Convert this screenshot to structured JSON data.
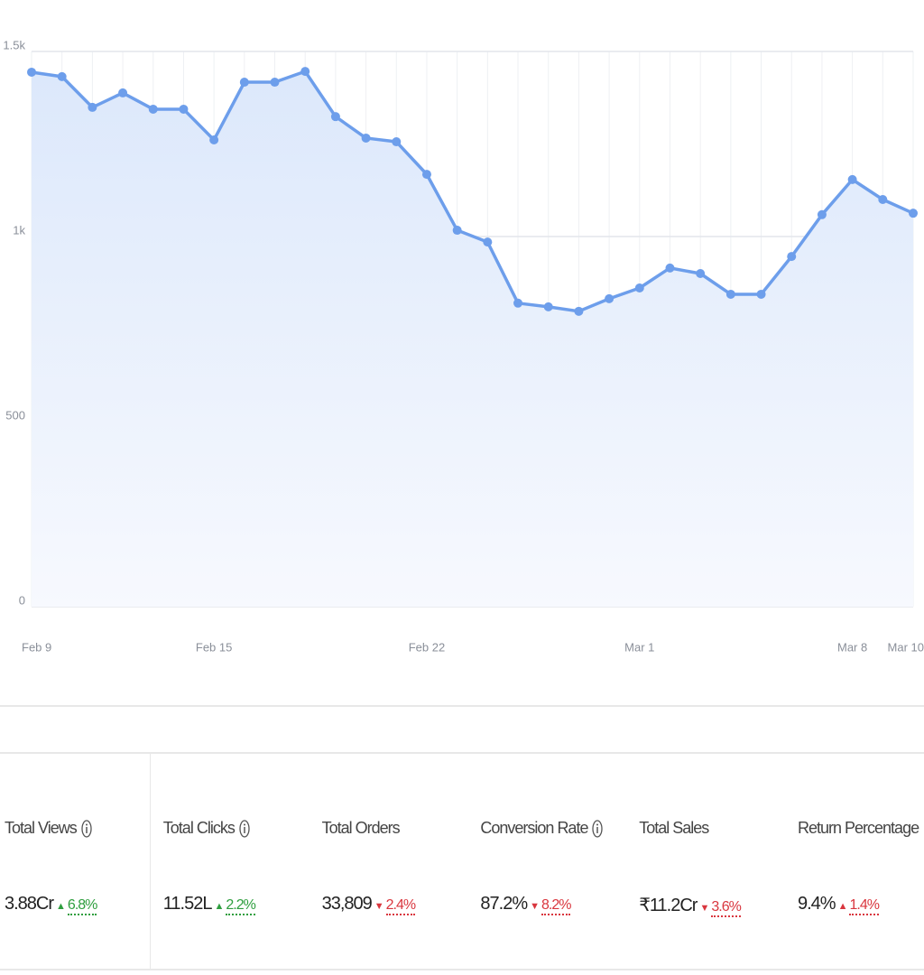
{
  "chart_data": {
    "type": "line",
    "categories": [
      "Feb 9",
      null,
      null,
      null,
      null,
      null,
      "Feb 15",
      null,
      null,
      null,
      null,
      null,
      null,
      "Feb 22",
      null,
      null,
      null,
      null,
      null,
      null,
      "Mar 1",
      null,
      null,
      null,
      null,
      null,
      null,
      "Mar 8",
      null,
      "Mar 10"
    ],
    "values": [
      1444,
      1432,
      1349,
      1388,
      1344,
      1344,
      1261,
      1417,
      1417,
      1446,
      1324,
      1266,
      1256,
      1168,
      1017,
      985,
      820,
      810,
      798,
      832,
      861,
      915,
      900,
      844,
      844,
      946,
      1059,
      1154,
      1100,
      1063
    ],
    "color": "#6d9eeb",
    "ylim": [
      0,
      1500
    ],
    "yticks": [
      0,
      500,
      {
        "value": 1000,
        "label": "1k"
      },
      {
        "value": 1500,
        "label": "1.5k"
      }
    ],
    "grid": true
  },
  "metrics": [
    {
      "label": "Total Views",
      "value": "3.88Cr",
      "arrow": "▲",
      "change": "6.8%",
      "color": "#2e9e3e",
      "info": true
    },
    {
      "label": "Total Clicks",
      "value": "11.52L",
      "arrow": "▲",
      "change": "2.2%",
      "color": "#2e9e3e",
      "info": true
    },
    {
      "label": "Total Orders",
      "value": "33,809",
      "arrow": "▼",
      "change": "2.4%",
      "color": "#d9363e",
      "info": false
    },
    {
      "label": "Conversion Rate",
      "value": "87.2%",
      "arrow": "▼",
      "change": "8.2%",
      "color": "#d9363e",
      "info": true
    },
    {
      "label": "Total Sales",
      "value": "₹11.2Cr",
      "arrow": "▼",
      "change": "3.6%",
      "color": "#d9363e",
      "info": false
    },
    {
      "label": "Return Percentage",
      "value": "9.4%",
      "arrow": "▲",
      "change": "1.4%",
      "color": "#d9363e",
      "info": false
    }
  ]
}
